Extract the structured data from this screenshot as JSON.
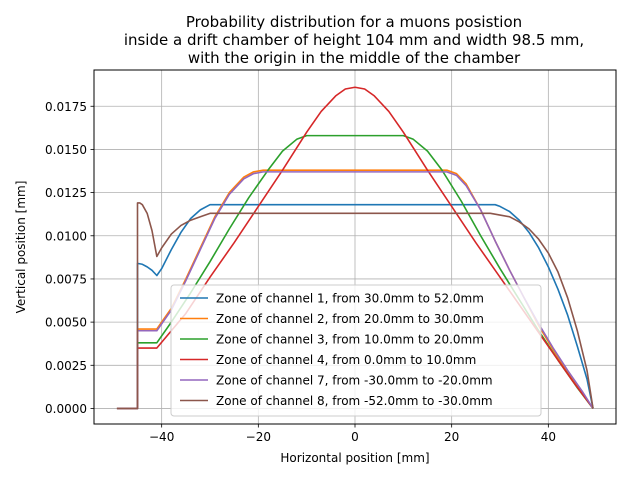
{
  "chart_data": {
    "type": "line",
    "title_lines": [
      "Probability distribution for a muons posistion",
      "inside a drift chamber of height 104 mm and width 98.5 mm,",
      "with the origin in the middle of the chamber"
    ],
    "xlabel": "Horizontal position [mm]",
    "ylabel": "Vertical position [mm]",
    "xlim": [
      -54,
      54
    ],
    "ylim": [
      -0.0009,
      0.0196
    ],
    "xticks": [
      -40,
      -20,
      0,
      20,
      40
    ],
    "xtick_labels": [
      "−40",
      "−20",
      "0",
      "20",
      "40"
    ],
    "yticks": [
      0.0,
      0.0025,
      0.005,
      0.0075,
      0.01,
      0.0125,
      0.015,
      0.0175
    ],
    "ytick_labels": [
      "0.0000",
      "0.0025",
      "0.0050",
      "0.0075",
      "0.0100",
      "0.0125",
      "0.0150",
      "0.0175"
    ],
    "grid": true,
    "legend_position": "lower-center",
    "series": [
      {
        "name": "Zone of channel 1, from 30.0mm to 52.0mm",
        "color": "#1f77b4",
        "x": [
          -49.25,
          -45,
          -45,
          -44,
          -43,
          -42,
          -41,
          -40,
          -38,
          -36,
          -34,
          -32,
          -30,
          -29,
          -28,
          28,
          29,
          30,
          32,
          34,
          36,
          38,
          40,
          42,
          44,
          46,
          48,
          49.25
        ],
        "y": [
          0,
          0,
          0.0084,
          0.00835,
          0.0082,
          0.008,
          0.0077,
          0.0081,
          0.0092,
          0.0102,
          0.011,
          0.0115,
          0.0118,
          0.0118,
          0.0118,
          0.0118,
          0.0118,
          0.0117,
          0.0114,
          0.0109,
          0.0102,
          0.0093,
          0.0082,
          0.0069,
          0.0054,
          0.0036,
          0.0017,
          0.0
        ]
      },
      {
        "name": "Zone of channel 2, from 20.0mm to 30.0mm",
        "color": "#ff7f0e",
        "x": [
          -49.25,
          -45,
          -45,
          -41,
          -38,
          -35,
          -32,
          -29,
          -26,
          -23,
          -21,
          -19,
          19,
          21,
          23,
          26,
          29,
          32,
          35,
          38,
          41,
          44,
          47,
          49.25
        ],
        "y": [
          0,
          0,
          0.0046,
          0.0046,
          0.0058,
          0.0075,
          0.0093,
          0.0111,
          0.0125,
          0.0134,
          0.0137,
          0.0138,
          0.0138,
          0.0136,
          0.013,
          0.0115,
          0.0097,
          0.008,
          0.0064,
          0.0048,
          0.0034,
          0.0021,
          0.0009,
          0.0
        ]
      },
      {
        "name": "Zone of channel 3, from 10.0mm to 20.0mm",
        "color": "#2ca02c",
        "x": [
          -49.25,
          -45,
          -45,
          -41,
          -38,
          -34,
          -30,
          -26,
          -22,
          -18,
          -15,
          -12,
          -10,
          10,
          12,
          15,
          18,
          22,
          26,
          30,
          34,
          38,
          42,
          46,
          49.25
        ],
        "y": [
          0,
          0,
          0.0038,
          0.0038,
          0.005,
          0.0067,
          0.0085,
          0.0104,
          0.0122,
          0.0138,
          0.0149,
          0.0156,
          0.0158,
          0.0158,
          0.0156,
          0.0149,
          0.0138,
          0.012,
          0.01,
          0.0081,
          0.0063,
          0.0045,
          0.0028,
          0.0012,
          0.0
        ]
      },
      {
        "name": "Zone of channel 4, from 0.0mm to 10.0mm",
        "color": "#d62728",
        "x": [
          -49.25,
          -45,
          -45,
          -41,
          -35,
          -30,
          -25,
          -20,
          -15,
          -10,
          -7,
          -4,
          -2,
          0,
          2,
          4,
          7,
          10,
          15,
          20,
          25,
          30,
          35,
          40,
          45,
          49.25
        ],
        "y": [
          0,
          0,
          0.0035,
          0.0035,
          0.0055,
          0.0076,
          0.0096,
          0.0117,
          0.0138,
          0.016,
          0.0172,
          0.0181,
          0.0185,
          0.0186,
          0.0185,
          0.0181,
          0.0172,
          0.016,
          0.0138,
          0.0117,
          0.0096,
          0.0076,
          0.0056,
          0.0036,
          0.0016,
          0.0
        ]
      },
      {
        "name": "Zone of channel 7, from -30.0mm to -20.0mm",
        "color": "#9467bd",
        "x": [
          -49.25,
          -45,
          -45,
          -41,
          -38,
          -35,
          -32,
          -29,
          -26,
          -23,
          -21,
          -19,
          19,
          21,
          23,
          26,
          29,
          32,
          35,
          38,
          41,
          44,
          47,
          49.25
        ],
        "y": [
          0,
          0,
          0.0045,
          0.0045,
          0.0057,
          0.0074,
          0.0092,
          0.011,
          0.0124,
          0.0133,
          0.0136,
          0.0137,
          0.0137,
          0.0135,
          0.0129,
          0.0115,
          0.0097,
          0.008,
          0.0064,
          0.0049,
          0.0035,
          0.0022,
          0.001,
          0.0
        ]
      },
      {
        "name": "Zone of channel 8, from -52.0mm to -30.0mm",
        "color": "#8c564b",
        "x": [
          -49.25,
          -45,
          -45,
          -44.5,
          -44,
          -43,
          -42,
          -41,
          -40,
          -38,
          -36,
          -34,
          -32,
          -30,
          -28,
          -26,
          26,
          28,
          30,
          32,
          34,
          36,
          38,
          40,
          42,
          44,
          46,
          48,
          49.25
        ],
        "y": [
          0,
          0,
          0.0119,
          0.0119,
          0.0118,
          0.0113,
          0.0103,
          0.0088,
          0.0093,
          0.0101,
          0.0106,
          0.0109,
          0.0111,
          0.0113,
          0.0113,
          0.0113,
          0.0113,
          0.0113,
          0.0112,
          0.0111,
          0.0108,
          0.0104,
          0.0098,
          0.009,
          0.0079,
          0.0064,
          0.0045,
          0.0022,
          0.0
        ]
      }
    ]
  }
}
